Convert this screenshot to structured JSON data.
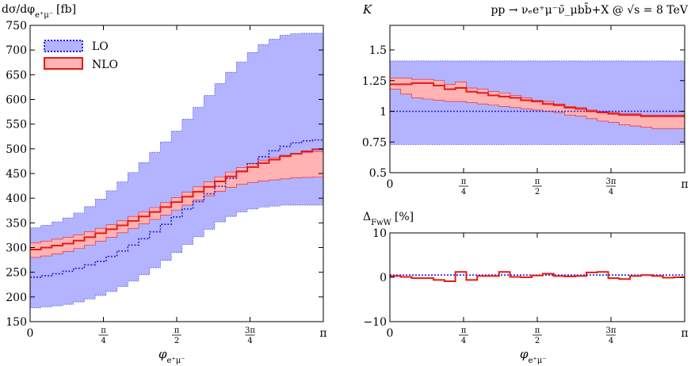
{
  "chart_data": [
    {
      "type": "line",
      "panel": "left",
      "ylabel": "dσ/dφ_{e⁺μ⁻} [fb]",
      "ylabel_main": "dσ/dφ",
      "ylabel_sub": "e⁺μ⁻",
      "ylabel_unit": "[fb]",
      "xlabel": "φ",
      "xlabel_sub": "e⁺μ⁻",
      "ylim": [
        150,
        750
      ],
      "xlim": [
        0,
        3.14159
      ],
      "yticks": [
        "150",
        "200",
        "250",
        "300",
        "350",
        "400",
        "450",
        "500",
        "550",
        "600",
        "650",
        "700",
        "750"
      ],
      "xticks": [
        {
          "num": "0",
          "den": ""
        },
        {
          "num": "π",
          "den": "4"
        },
        {
          "num": "π",
          "den": "2"
        },
        {
          "num": "3π",
          "den": "4"
        },
        {
          "num": "π",
          "den": ""
        }
      ],
      "legend_position": "top-left",
      "series": [
        {
          "name": "LO",
          "color": "#1f1fd6",
          "band_color": "#b3b3ff",
          "central": [
            240,
            243,
            247,
            252,
            258,
            265,
            272,
            282,
            293,
            305,
            318,
            332,
            347,
            362,
            378,
            393,
            409,
            424,
            440,
            455,
            470,
            484,
            496,
            505,
            512,
            516,
            518
          ],
          "low": [
            178,
            180,
            182,
            185,
            190,
            196,
            203,
            211,
            221,
            232,
            245,
            259,
            274,
            290,
            306,
            322,
            337,
            352,
            363,
            372,
            378,
            382,
            384,
            386,
            386,
            386,
            386
          ],
          "high": [
            340,
            345,
            352,
            360,
            370,
            383,
            398,
            415,
            433,
            452,
            472,
            493,
            514,
            536,
            560,
            584,
            608,
            632,
            655,
            676,
            695,
            711,
            722,
            730,
            733,
            734,
            734
          ]
        },
        {
          "name": "NLO",
          "color": "#e61919",
          "band_color": "#ffb3b3",
          "central": [
            296,
            300,
            304,
            308,
            314,
            321,
            329,
            337,
            345,
            354,
            363,
            372,
            382,
            392,
            403,
            413,
            423,
            434,
            444,
            454,
            463,
            471,
            478,
            485,
            490,
            495,
            499
          ],
          "low": [
            280,
            283,
            287,
            292,
            298,
            305,
            313,
            321,
            330,
            339,
            348,
            357,
            366,
            376,
            386,
            396,
            405,
            414,
            422,
            428,
            432,
            435,
            437,
            439,
            441,
            442,
            443
          ],
          "high": [
            310,
            313,
            317,
            321,
            326,
            332,
            339,
            346,
            354,
            363,
            372,
            381,
            391,
            401,
            412,
            423,
            433,
            443,
            453,
            462,
            470,
            477,
            482,
            487,
            490,
            492,
            494
          ]
        }
      ]
    },
    {
      "type": "line",
      "panel": "right-top",
      "ylabel": "K",
      "title": "pp → ν_e e⁺ μ⁻ ν̄_μ b b̄ + X @ √s = 8 TeV",
      "title_parts": {
        "process": "pp → νₑe⁺μ⁻ν̄_μbb̄+X @ ",
        "sqrt": "√s",
        "energy": " = 8 TeV"
      },
      "ylim": [
        0.5,
        1.7
      ],
      "yticks": [
        "0.5",
        "0.75",
        "1",
        "1.25",
        "1.5"
      ],
      "ytick_values": [
        0.5,
        0.75,
        1.0,
        1.25,
        1.5
      ],
      "xticks": [
        {
          "num": "0",
          "den": ""
        },
        {
          "num": "π",
          "den": "4"
        },
        {
          "num": "π",
          "den": "2"
        },
        {
          "num": "3π",
          "den": "4"
        },
        {
          "num": "π",
          "den": ""
        }
      ],
      "series": [
        {
          "name": "LO",
          "band": [
            0.73,
            1.41
          ],
          "central": 1.0
        },
        {
          "name": "NLO",
          "central": [
            1.22,
            1.22,
            1.23,
            1.23,
            1.21,
            1.18,
            1.19,
            1.16,
            1.15,
            1.13,
            1.12,
            1.11,
            1.09,
            1.08,
            1.06,
            1.05,
            1.03,
            1.02,
            1.0,
            0.99,
            0.98,
            0.97,
            0.97,
            0.96,
            0.96,
            0.96,
            0.96
          ],
          "low": [
            1.18,
            1.14,
            1.11,
            1.1,
            1.09,
            1.08,
            1.08,
            1.07,
            1.06,
            1.05,
            1.04,
            1.03,
            1.02,
            1.01,
            1.0,
            0.99,
            0.97,
            0.96,
            0.94,
            0.92,
            0.91,
            0.89,
            0.88,
            0.87,
            0.86,
            0.86,
            0.86
          ],
          "high": [
            1.27,
            1.27,
            1.26,
            1.26,
            1.25,
            1.22,
            1.24,
            1.19,
            1.18,
            1.16,
            1.15,
            1.13,
            1.11,
            1.09,
            1.08,
            1.06,
            1.04,
            1.03,
            1.01,
            1.0,
            0.99,
            0.98,
            0.98,
            0.97,
            0.97,
            0.97,
            0.97
          ]
        }
      ]
    },
    {
      "type": "line",
      "panel": "right-bottom",
      "ylabel": "Δ_FwW [%]",
      "ylabel_main": "Δ",
      "ylabel_sub": "FwW",
      "ylabel_unit": "[%]",
      "xlabel": "φ",
      "xlabel_sub": "e⁺μ⁻",
      "ylim": [
        -10,
        10
      ],
      "yticks": [
        "−10",
        "0",
        "10"
      ],
      "ytick_values": [
        -10,
        0,
        10
      ],
      "xticks": [
        {
          "num": "0",
          "den": ""
        },
        {
          "num": "π",
          "den": "4"
        },
        {
          "num": "π",
          "den": "2"
        },
        {
          "num": "3π",
          "den": "4"
        },
        {
          "num": "π",
          "den": ""
        }
      ],
      "series": [
        {
          "name": "LO",
          "central": 0.5
        },
        {
          "name": "NLO",
          "values": [
            0.3,
            0.1,
            -0.2,
            -0.2,
            -0.6,
            -0.9,
            1.2,
            -0.6,
            0.3,
            0.3,
            1.2,
            0.1,
            0.0,
            0.4,
            0.8,
            0.3,
            0.2,
            0.3,
            1.1,
            1.2,
            -0.2,
            -0.4,
            0.3,
            0.5,
            0.3,
            -0.1,
            0.0
          ]
        }
      ]
    }
  ]
}
